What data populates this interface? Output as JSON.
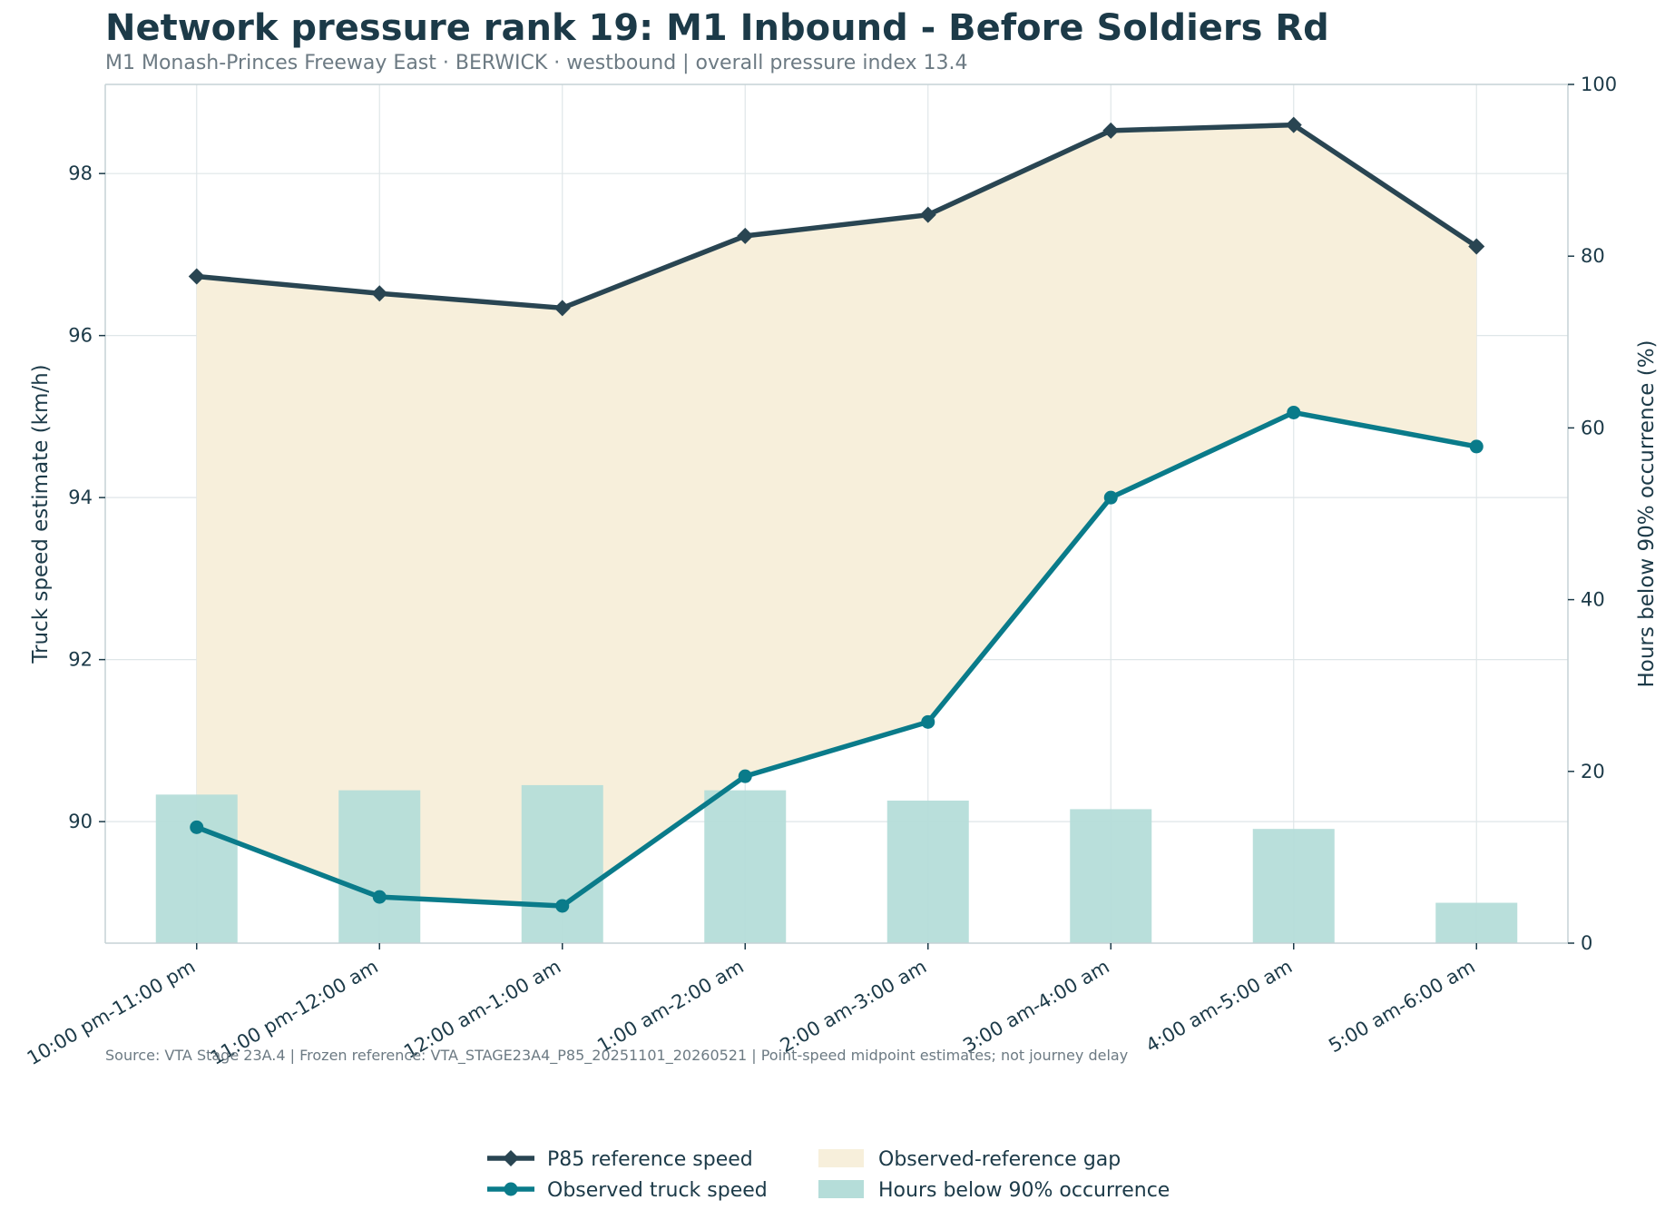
{
  "title": "Network pressure rank 19: M1 Inbound - Before Soldiers Rd",
  "subtitle": "M1 Monash-Princes Freeway East · BERWICK · westbound | overall pressure index 13.4",
  "source_note": "Source: VTA Stage 23A.4 | Frozen reference: VTA_STAGE23A4_P85_20251101_20260521 | Point-speed midpoint estimates; not journey delay",
  "colors": {
    "reference": "#294552",
    "observed": "#0a7b8a",
    "gap_fill": "#f7efdb",
    "bars": "#b5ddd9",
    "grid": "#dfe6e8",
    "axis": "#c5d2d6"
  },
  "chart_data": {
    "type": "line",
    "categories": [
      "10:00 pm-11:00 pm",
      "11:00 pm-12:00 am",
      "12:00 am-1:00 am",
      "1:00 am-2:00 am",
      "2:00 am-3:00 am",
      "3:00 am-4:00 am",
      "4:00 am-5:00 am",
      "5:00 am-6:00 am"
    ],
    "ylabel": "Truck speed estimate (km/h)",
    "y2label": "Hours below 90% occurrence (%)",
    "ylim": [
      88.5,
      99.1
    ],
    "y2lim": [
      0,
      100
    ],
    "yticks": [
      90,
      92,
      94,
      96,
      98
    ],
    "y2ticks": [
      0,
      20,
      40,
      60,
      80,
      100
    ],
    "grid": true,
    "legend_position": "bottom",
    "series": [
      {
        "name": "P85 reference speed",
        "type": "line",
        "marker": "diamond",
        "axis": "left",
        "values": [
          96.73,
          96.52,
          96.34,
          97.23,
          97.49,
          98.53,
          98.6,
          97.1
        ]
      },
      {
        "name": "Observed truck speed",
        "type": "line",
        "marker": "circle",
        "axis": "left",
        "values": [
          89.93,
          89.07,
          88.96,
          90.56,
          91.23,
          94.0,
          95.05,
          94.63
        ]
      },
      {
        "name": "Observed-reference gap",
        "type": "area",
        "axis": "left"
      },
      {
        "name": "Hours below 90% occurrence",
        "type": "bar",
        "axis": "right",
        "values": [
          17.3,
          17.8,
          18.4,
          17.8,
          16.6,
          15.6,
          13.3,
          4.7
        ]
      }
    ]
  }
}
